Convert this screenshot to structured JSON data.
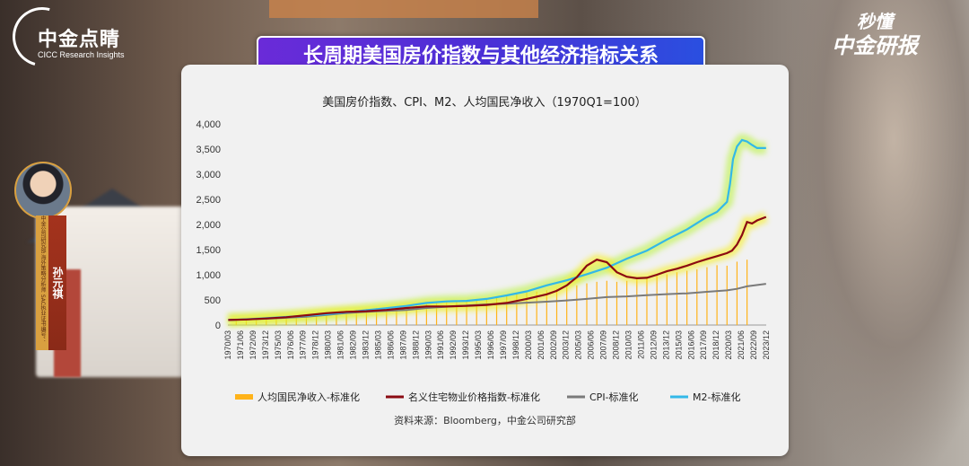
{
  "header": {
    "logo_title": "中金点睛",
    "logo_subtitle": "CICC Research Insights",
    "brand_line1": "秒懂",
    "brand_line2": "中金研报",
    "banner_title": "长周期美国房价指数与其他经济指标关系"
  },
  "speaker": {
    "name": "孙元祺",
    "credential": "中金公司研究部 海外策略分析师 SAC执业证书编号：S0080522050002"
  },
  "source_note": "资料来源：Bloomberg，中金公司研究部",
  "colors": {
    "income": "#ffb31a",
    "housing": "#8b0a12",
    "cpi": "#7a7a7a",
    "m2": "#33b8e8",
    "banner": "#5a2bd8"
  },
  "chart_data": {
    "type": "line",
    "title": "美国房价指数、CPI、M2、人均国民净收入（1970Q1=100）",
    "ylim": [
      0,
      4000
    ],
    "yticks": [
      0,
      500,
      1000,
      1500,
      2000,
      2500,
      3000,
      3500,
      4000
    ],
    "ytick_labels": [
      "0",
      "500",
      "1,000",
      "1,500",
      "2,000",
      "2,500",
      "3,000",
      "3,500",
      "4,000"
    ],
    "xlim": [
      1970.167,
      2023.917
    ],
    "x_tick_labels": [
      "1970/03",
      "1971/06",
      "1972/09",
      "1973/12",
      "1975/03",
      "1976/06",
      "1977/09",
      "1978/12",
      "1980/03",
      "1981/06",
      "1982/09",
      "1983/12",
      "1985/03",
      "1986/06",
      "1987/09",
      "1988/12",
      "1990/03",
      "1991/06",
      "1992/09",
      "1993/12",
      "1995/03",
      "1996/06",
      "1997/09",
      "1998/12",
      "2000/03",
      "2001/06",
      "2002/09",
      "2003/12",
      "2005/03",
      "2006/06",
      "2007/09",
      "2008/12",
      "2010/03",
      "2011/06",
      "2012/09",
      "2013/12",
      "2015/03",
      "2016/06",
      "2017/09",
      "2018/12",
      "2020/03",
      "2021/06",
      "2022/09",
      "2023/12"
    ],
    "legend_position": "bottom",
    "grid": false,
    "series": [
      {
        "name": "人均国民净收入-标准化",
        "style": "bar",
        "x": [
          1971,
          1972,
          1973,
          1974,
          1975,
          1976,
          1977,
          1978,
          1979,
          1980,
          1981,
          1982,
          1983,
          1984,
          1985,
          1986,
          1987,
          1988,
          1989,
          1990,
          1991,
          1992,
          1993,
          1994,
          1995,
          1996,
          1997,
          1998,
          1999,
          2000,
          2001,
          2002,
          2003,
          2004,
          2005,
          2006,
          2007,
          2008,
          2009,
          2010,
          2011,
          2012,
          2013,
          2014,
          2015,
          2016,
          2017,
          2018,
          2019,
          2020,
          2021,
          2022
        ],
        "values": [
          115,
          125,
          140,
          155,
          165,
          180,
          195,
          215,
          235,
          255,
          275,
          290,
          305,
          320,
          340,
          355,
          370,
          390,
          410,
          430,
          445,
          460,
          475,
          495,
          515,
          535,
          560,
          590,
          615,
          645,
          665,
          690,
          720,
          750,
          790,
          830,
          860,
          880,
          860,
          880,
          910,
          950,
          980,
          1010,
          1050,
          1080,
          1110,
          1150,
          1190,
          1180,
          1260,
          1300
        ]
      },
      {
        "name": "名义住宅物业价格指数-标准化",
        "x": [
          1970.2,
          1972,
          1974,
          1976,
          1978,
          1980,
          1982,
          1984,
          1986,
          1988,
          1990,
          1992,
          1994,
          1996,
          1998,
          2000,
          2002,
          2003,
          2004,
          2005,
          2006,
          2007,
          2008,
          2009,
          2010,
          2011,
          2012,
          2013,
          2014,
          2015,
          2016,
          2017,
          2018,
          2019,
          2020,
          2020.5,
          2021,
          2021.5,
          2022,
          2022.5,
          2023,
          2023.9
        ],
        "values": [
          100,
          110,
          130,
          155,
          195,
          235,
          260,
          275,
          300,
          340,
          370,
          370,
          380,
          400,
          440,
          520,
          610,
          680,
          790,
          950,
          1180,
          1300,
          1250,
          1050,
          960,
          930,
          940,
          1000,
          1070,
          1120,
          1180,
          1250,
          1310,
          1370,
          1430,
          1480,
          1600,
          1790,
          2050,
          2020,
          2080,
          2150
        ]
      },
      {
        "name": "CPI-标准化",
        "x": [
          1970.2,
          1972,
          1974,
          1976,
          1978,
          1980,
          1982,
          1984,
          1986,
          1988,
          1990,
          1992,
          1994,
          1996,
          1998,
          2000,
          2002,
          2004,
          2006,
          2008,
          2010,
          2012,
          2014,
          2016,
          2018,
          2020,
          2021,
          2022,
          2023.9
        ],
        "values": [
          100,
          110,
          125,
          145,
          165,
          200,
          240,
          265,
          280,
          300,
          340,
          365,
          390,
          410,
          425,
          445,
          465,
          490,
          520,
          555,
          570,
          595,
          615,
          630,
          660,
          690,
          720,
          770,
          820
        ]
      },
      {
        "name": "M2-标准化",
        "x": [
          1970.2,
          1972,
          1974,
          1976,
          1978,
          1980,
          1982,
          1984,
          1986,
          1988,
          1990,
          1992,
          1994,
          1996,
          1998,
          2000,
          2002,
          2004,
          2006,
          2008,
          2010,
          2012,
          2014,
          2016,
          2018,
          2019,
          2020,
          2020.3,
          2020.6,
          2021,
          2021.5,
          2022,
          2022.5,
          2023,
          2023.9
        ],
        "values": [
          100,
          115,
          135,
          160,
          185,
          215,
          250,
          295,
          335,
          380,
          440,
          470,
          480,
          520,
          590,
          670,
          790,
          890,
          1010,
          1140,
          1320,
          1480,
          1700,
          1900,
          2150,
          2250,
          2450,
          2800,
          3300,
          3550,
          3680,
          3650,
          3580,
          3520,
          3520
        ]
      }
    ]
  }
}
